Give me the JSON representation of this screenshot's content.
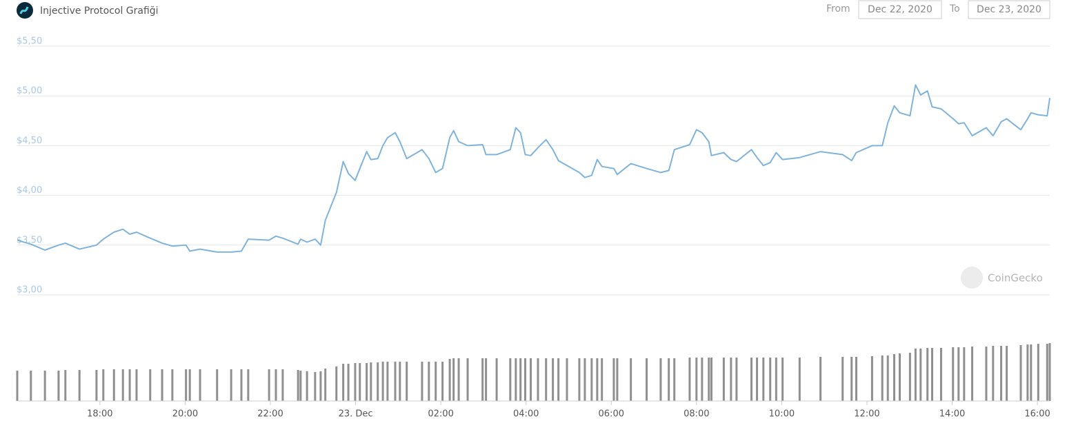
{
  "header": {
    "title": "Injective Protocol Grafiği",
    "from_label": "From",
    "from": "Dec 22, 2020",
    "to_label": "To",
    "to": "Dec 23, 2020"
  },
  "watermark": "CoinGecko",
  "chart_data": {
    "type": "line",
    "color": "#7eb3de",
    "volume_color": "#8f8f8f",
    "grid": true,
    "x": [
      16.06,
      16.38,
      16.71,
      17.03,
      17.19,
      17.52,
      17.92,
      18.08,
      18.33,
      18.54,
      18.7,
      18.86,
      19.18,
      19.46,
      19.7,
      20.02,
      20.11,
      20.35,
      20.75,
      21.08,
      21.32,
      21.48,
      21.97,
      22.13,
      22.29,
      22.65,
      22.71,
      22.86,
      23.05,
      23.18,
      23.29,
      23.55,
      23.71,
      23.83,
      23.99,
      24.1,
      24.26,
      24.36,
      24.52,
      24.64,
      24.75,
      24.93,
      25.04,
      25.2,
      25.56,
      25.72,
      25.88,
      26.04,
      26.21,
      26.3,
      26.42,
      26.63,
      26.98,
      27.06,
      27.31,
      27.63,
      27.76,
      27.87,
      27.98,
      28.11,
      28.28,
      28.47,
      28.63,
      28.76,
      28.96,
      29.25,
      29.38,
      29.54,
      29.67,
      29.78,
      30.06,
      30.14,
      30.46,
      30.83,
      31.16,
      31.35,
      31.48,
      31.84,
      32.0,
      32.13,
      32.29,
      32.35,
      32.64,
      32.81,
      32.94,
      33.29,
      33.42,
      33.57,
      33.73,
      33.87,
      34.02,
      34.42,
      34.91,
      35.43,
      35.64,
      35.75,
      36.12,
      36.36,
      36.49,
      36.64,
      36.77,
      37.01,
      37.14,
      37.26,
      37.42,
      37.53,
      37.74,
      38.02,
      38.15,
      38.28,
      38.47,
      38.8,
      38.96,
      39.15,
      39.28,
      39.61,
      39.77,
      39.85,
      40.02,
      40.23,
      40.29
    ],
    "values": [
      3.55,
      3.51,
      3.45,
      3.5,
      3.52,
      3.46,
      3.5,
      3.56,
      3.63,
      3.66,
      3.61,
      3.63,
      3.57,
      3.52,
      3.49,
      3.5,
      3.44,
      3.46,
      3.43,
      3.43,
      3.44,
      3.56,
      3.55,
      3.59,
      3.57,
      3.51,
      3.56,
      3.53,
      3.56,
      3.5,
      3.75,
      4.03,
      4.34,
      4.22,
      4.15,
      4.27,
      4.44,
      4.36,
      4.37,
      4.5,
      4.58,
      4.63,
      4.54,
      4.37,
      4.46,
      4.37,
      4.23,
      4.27,
      4.58,
      4.65,
      4.54,
      4.5,
      4.51,
      4.41,
      4.41,
      4.46,
      4.68,
      4.63,
      4.41,
      4.4,
      4.48,
      4.56,
      4.46,
      4.35,
      4.3,
      4.23,
      4.18,
      4.2,
      4.36,
      4.29,
      4.27,
      4.21,
      4.32,
      4.27,
      4.23,
      4.25,
      4.46,
      4.51,
      4.66,
      4.63,
      4.54,
      4.4,
      4.43,
      4.36,
      4.34,
      4.46,
      4.38,
      4.3,
      4.33,
      4.43,
      4.36,
      4.38,
      4.44,
      4.41,
      4.35,
      4.43,
      4.5,
      4.5,
      4.73,
      4.9,
      4.83,
      4.8,
      5.11,
      5.01,
      5.05,
      4.89,
      4.87,
      4.77,
      4.72,
      4.73,
      4.6,
      4.68,
      4.6,
      4.74,
      4.77,
      4.66,
      4.77,
      4.83,
      4.81,
      4.8,
      4.98
    ],
    "volume": [
      44,
      44,
      44,
      44,
      45,
      45,
      45,
      46,
      46,
      46,
      46,
      46,
      46,
      46,
      46,
      46,
      46,
      46,
      46,
      46,
      46,
      46,
      46,
      46,
      46,
      45,
      44,
      43,
      42,
      43,
      47,
      50,
      54,
      54,
      55,
      55,
      55,
      56,
      56,
      57,
      57,
      57,
      57,
      57,
      57,
      57,
      57,
      57,
      61,
      62,
      62,
      62,
      62,
      62,
      62,
      62,
      62,
      62,
      62,
      62,
      62,
      62,
      62,
      62,
      62,
      62,
      62,
      62,
      62,
      62,
      62,
      62,
      62,
      62,
      62,
      62,
      62,
      63,
      63,
      63,
      63,
      63,
      63,
      63,
      63,
      63,
      63,
      63,
      63,
      63,
      63,
      63,
      64,
      64,
      64,
      64,
      65,
      66,
      66,
      68,
      69,
      70,
      76,
      76,
      77,
      77,
      77,
      78,
      78,
      78,
      79,
      79,
      80,
      80,
      80,
      81,
      82,
      82,
      83,
      83,
      84
    ],
    "xlim": [
      16.06,
      40.29
    ],
    "xticks": [
      {
        "value": 18,
        "label": "18:00"
      },
      {
        "value": 20,
        "label": "20:00"
      },
      {
        "value": 22,
        "label": "22:00"
      },
      {
        "value": 24,
        "label": "23. Dec"
      },
      {
        "value": 26,
        "label": "02:00"
      },
      {
        "value": 28,
        "label": "04:00"
      },
      {
        "value": 30,
        "label": "06:00"
      },
      {
        "value": 32,
        "label": "08:00"
      },
      {
        "value": 34,
        "label": "10:00"
      },
      {
        "value": 36,
        "label": "12:00"
      },
      {
        "value": 38,
        "label": "14:00"
      },
      {
        "value": 40,
        "label": "16:00"
      }
    ],
    "ylim": [
      3,
      5.5
    ],
    "yticks": [
      {
        "value": 3,
        "label": "$3,00"
      },
      {
        "value": 3.5,
        "label": "$3,50"
      },
      {
        "value": 4,
        "label": "$4,00"
      },
      {
        "value": 4.5,
        "label": "$4,50"
      },
      {
        "value": 5,
        "label": "$5,00"
      },
      {
        "value": 5.5,
        "label": "$5,50"
      }
    ]
  }
}
